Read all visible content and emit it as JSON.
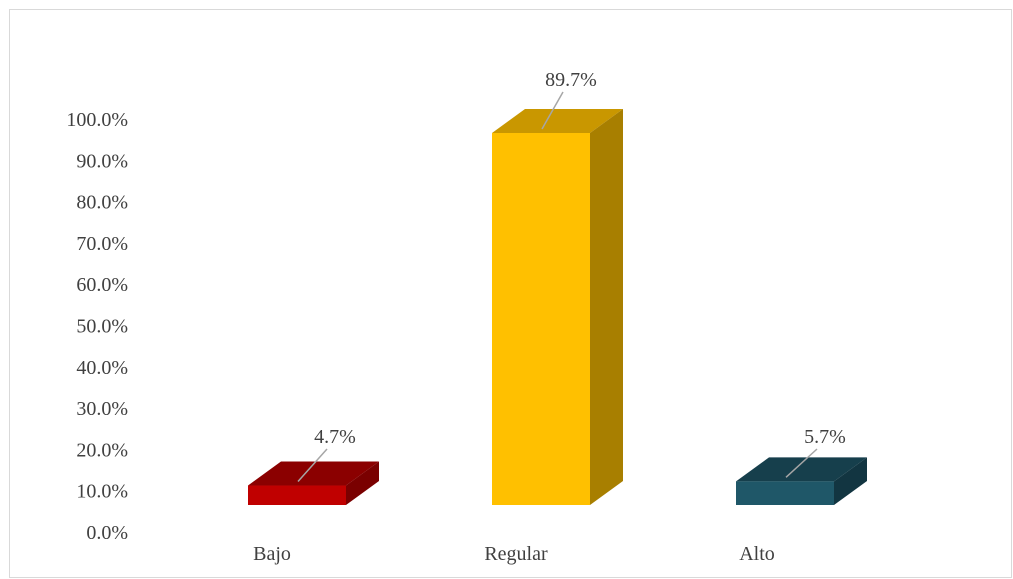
{
  "chart_data": {
    "type": "bar",
    "categories": [
      "Bajo",
      "Regular",
      "Alto"
    ],
    "values": [
      4.7,
      89.7,
      5.7
    ],
    "data_labels": [
      "4.7%",
      "89.7%",
      "5.7%"
    ],
    "ylim": [
      0,
      100
    ],
    "yticks": [
      "0.0%",
      "10.0%",
      "20.0%",
      "30.0%",
      "40.0%",
      "50.0%",
      "60.0%",
      "70.0%",
      "80.0%",
      "90.0%",
      "100.0%"
    ],
    "grid": false,
    "legend": "none",
    "three_d": true,
    "colors": [
      {
        "front": "#c00000",
        "top": "#8b0000",
        "side": "#7a0000"
      },
      {
        "front": "#ffc000",
        "top": "#c99700",
        "side": "#a87f00"
      },
      {
        "front": "#1f5768",
        "top": "#163f4c",
        "side": "#123541"
      }
    ]
  }
}
